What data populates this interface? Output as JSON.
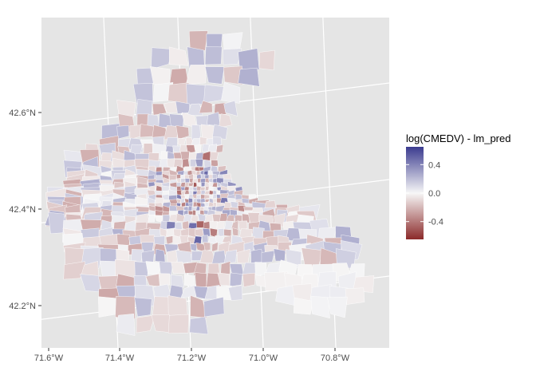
{
  "map": {
    "type": "choropleth",
    "region": "Boston area census tracts",
    "projection": "tilted lon/lat graticule",
    "y_axis_ticks": [
      "42.2°N",
      "42.4°N",
      "42.6°N"
    ],
    "x_axis_ticks": [
      "71.6°W",
      "71.4°W",
      "71.2°W",
      "71.0°W",
      "70.8°W"
    ],
    "legend": {
      "title": "log(CMEDV) - lm_pred",
      "tick_labels": [
        "0.4",
        "0.0",
        "-0.4"
      ],
      "ticks": [
        0.4,
        0.0,
        -0.4
      ],
      "min": -0.65,
      "max": 0.65,
      "placement": "right"
    },
    "colors": {
      "panel_bg": "#e5e5e5",
      "gridline": "#ffffff",
      "high": "#3b3b8f",
      "mid": "#f7f7f7",
      "low": "#8b2a2a",
      "axis_text": "#4d4d4d",
      "title_text": "#000000"
    }
  }
}
